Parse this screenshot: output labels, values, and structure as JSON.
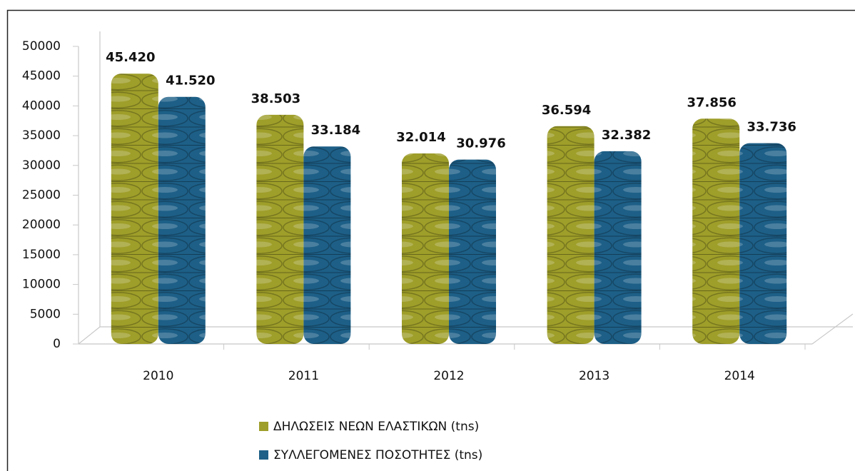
{
  "chart_data": {
    "type": "bar",
    "categories": [
      "2010",
      "2011",
      "2012",
      "2013",
      "2014"
    ],
    "series": [
      {
        "name": "ΔΗΛΩΣΕΙΣ ΝΕΩΝ ΕΛΑΣΤΙΚΩΝ (tns)",
        "color": "#9e9e2a",
        "values": [
          45420,
          38503,
          32014,
          36594,
          37856
        ],
        "value_labels": [
          "45.420",
          "38.503",
          "32.014",
          "36.594",
          "37.856"
        ]
      },
      {
        "name": "ΣΥΛΛΕΓΟΜΕΝΕΣ ΠΟΣΟΤΗΤΕΣ (tns)",
        "color": "#1d5f87",
        "values": [
          41520,
          33184,
          30976,
          32382,
          33736
        ],
        "value_labels": [
          "41.520",
          "33.184",
          "30.976",
          "32.382",
          "33.736"
        ]
      }
    ],
    "ylim": [
      0,
      50000
    ],
    "yticks": [
      0,
      5000,
      10000,
      15000,
      20000,
      25000,
      30000,
      35000,
      40000,
      45000,
      50000
    ],
    "grid": false,
    "legend": "bottom"
  }
}
